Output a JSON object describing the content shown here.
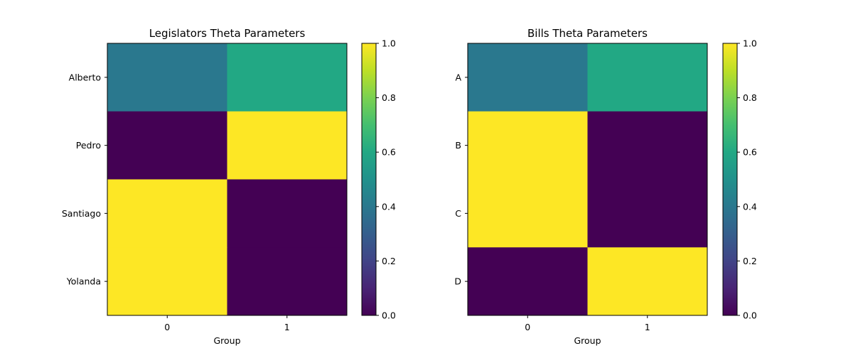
{
  "chart_data": [
    {
      "type": "heatmap",
      "title": "Legislators Theta Parameters",
      "xlabel": "Group",
      "ylabel": "",
      "x_categories": [
        "0",
        "1"
      ],
      "y_categories": [
        "Alberto",
        "Pedro",
        "Santiago",
        "Yolanda"
      ],
      "values": [
        [
          0.4,
          0.6
        ],
        [
          0.0,
          1.0
        ],
        [
          1.0,
          0.0
        ],
        [
          1.0,
          0.0
        ]
      ],
      "colormap": "viridis",
      "vmin": 0.0,
      "vmax": 1.0,
      "colorbar_ticks": [
        "0.0",
        "0.2",
        "0.4",
        "0.6",
        "0.8",
        "1.0"
      ],
      "grid": false
    },
    {
      "type": "heatmap",
      "title": "Bills Theta Parameters",
      "xlabel": "Group",
      "ylabel": "",
      "x_categories": [
        "0",
        "1"
      ],
      "y_categories": [
        "A",
        "B",
        "C",
        "D"
      ],
      "values": [
        [
          0.4,
          0.6
        ],
        [
          1.0,
          0.0
        ],
        [
          1.0,
          0.0
        ],
        [
          0.0,
          1.0
        ]
      ],
      "colormap": "viridis",
      "vmin": 0.0,
      "vmax": 1.0,
      "colorbar_ticks": [
        "0.0",
        "0.2",
        "0.4",
        "0.6",
        "0.8",
        "1.0"
      ],
      "grid": false
    }
  ]
}
